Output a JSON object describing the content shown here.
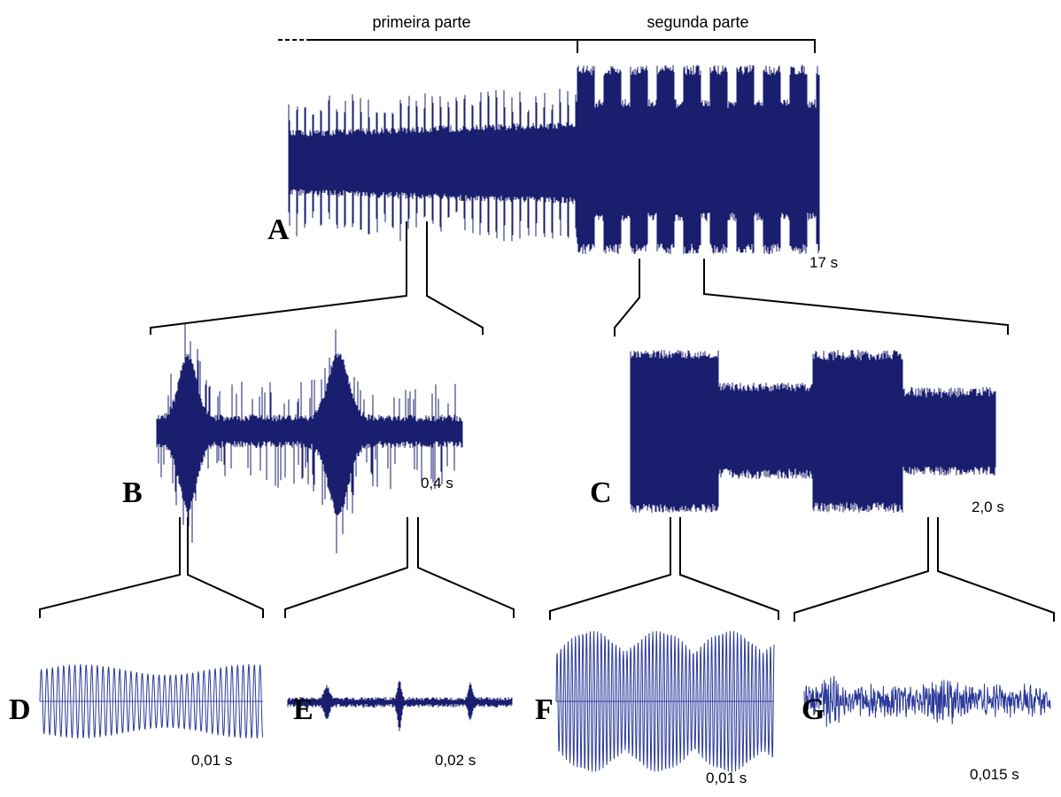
{
  "sections": {
    "first_part": "primeira parte",
    "second_part": "segunda parte"
  },
  "panels": [
    {
      "letter": "A",
      "scale": "17 s"
    },
    {
      "letter": "B",
      "scale": "0,4 s"
    },
    {
      "letter": "C",
      "scale": "2,0 s"
    },
    {
      "letter": "D",
      "scale": "0,01 s"
    },
    {
      "letter": "E",
      "scale": "0,02 s"
    },
    {
      "letter": "F",
      "scale": "0,01 s"
    },
    {
      "letter": "G",
      "scale": "0,015 s"
    }
  ],
  "colors": {
    "waveform": "#1a1e6e",
    "oscillogram_line": "#2b3a9a",
    "baseline": "#3b49b4"
  }
}
